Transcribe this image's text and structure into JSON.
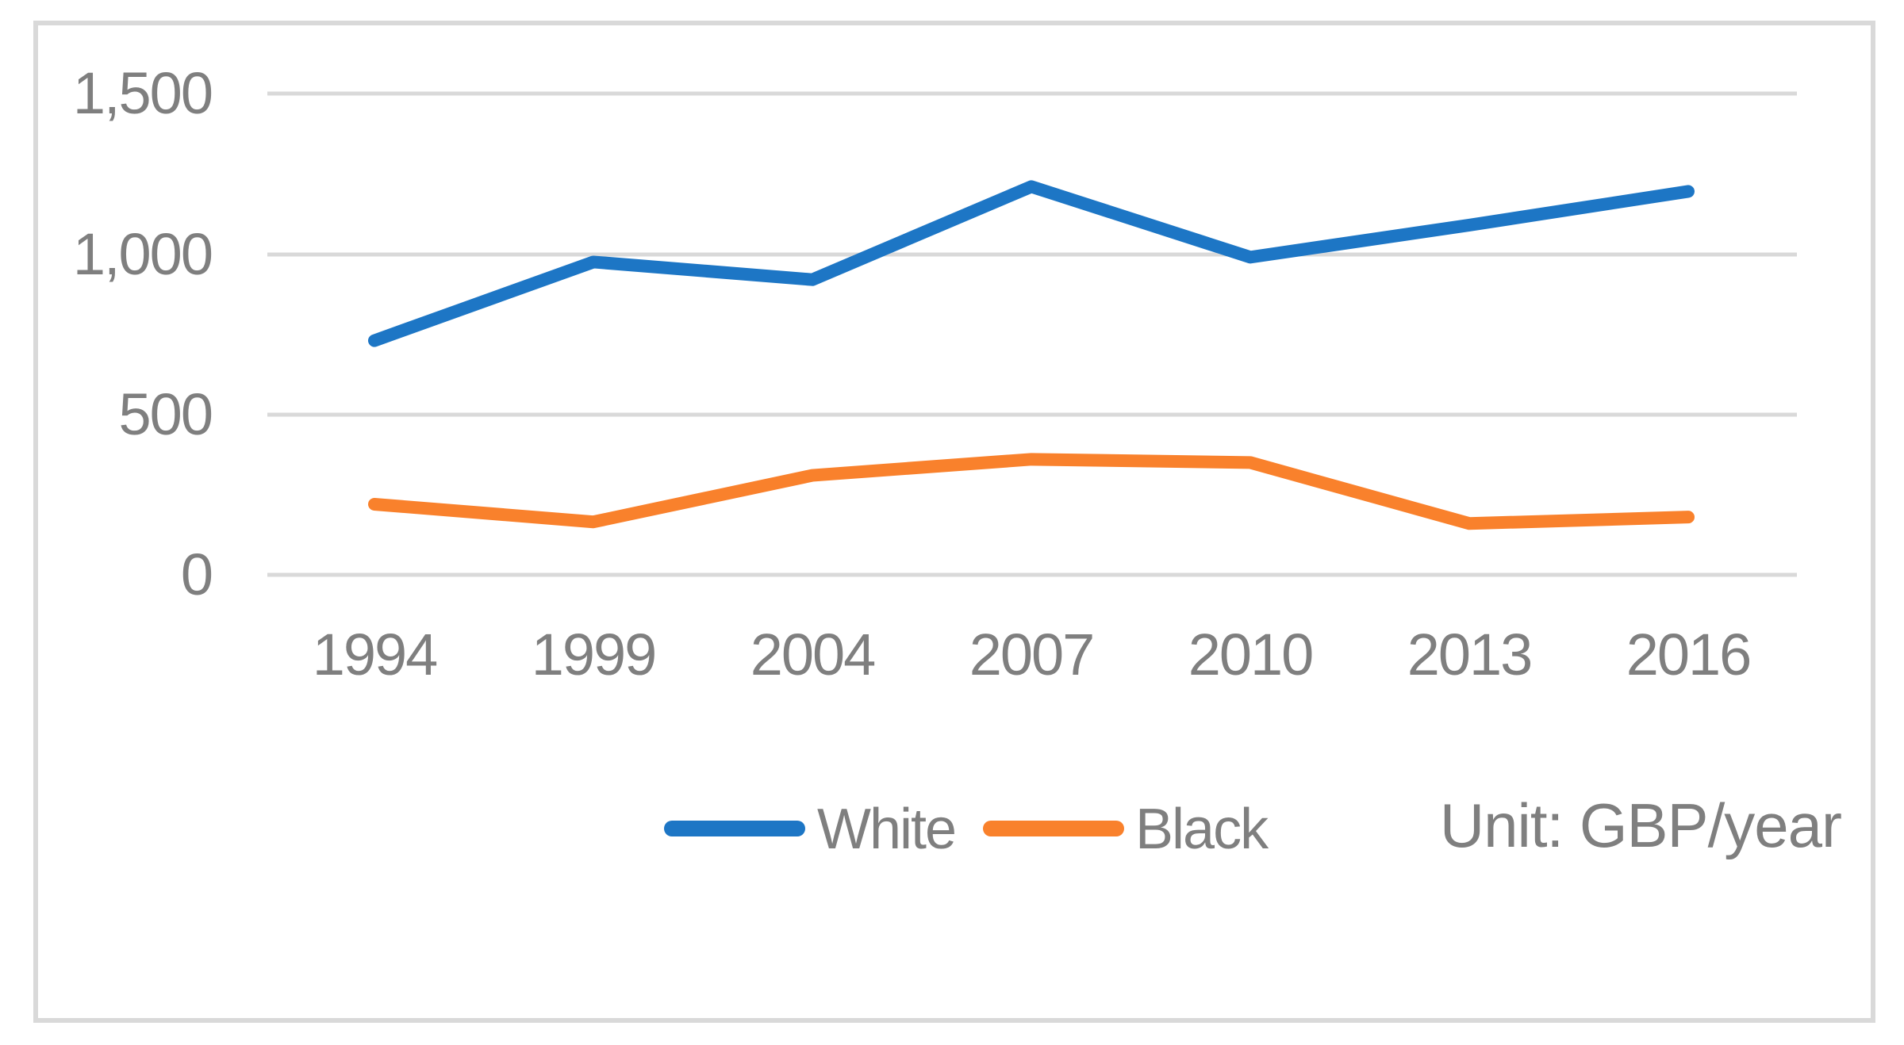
{
  "chart_data": {
    "type": "line",
    "categories": [
      "1994",
      "1999",
      "2004",
      "2007",
      "2010",
      "2013",
      "2016"
    ],
    "series": [
      {
        "name": "White",
        "color": "#1D76C5",
        "values": [
          730,
          975,
          920,
          1210,
          990,
          1090,
          1195
        ]
      },
      {
        "name": "Black",
        "color": "#F9812C",
        "values": [
          220,
          165,
          310,
          360,
          350,
          160,
          180
        ]
      }
    ],
    "ylim": [
      0,
      1500
    ],
    "yticks": [
      {
        "value": 1500,
        "label": "1,500"
      },
      {
        "value": 1000,
        "label": "1,000"
      },
      {
        "value": 500,
        "label": "500"
      },
      {
        "value": 0,
        "label": "0"
      }
    ],
    "grid": "horizontal",
    "legend_position": "bottom",
    "unit_note": "Unit: GBP/year",
    "gridline_color": "#D9D9D9",
    "text_color": "#7F7F7F"
  }
}
